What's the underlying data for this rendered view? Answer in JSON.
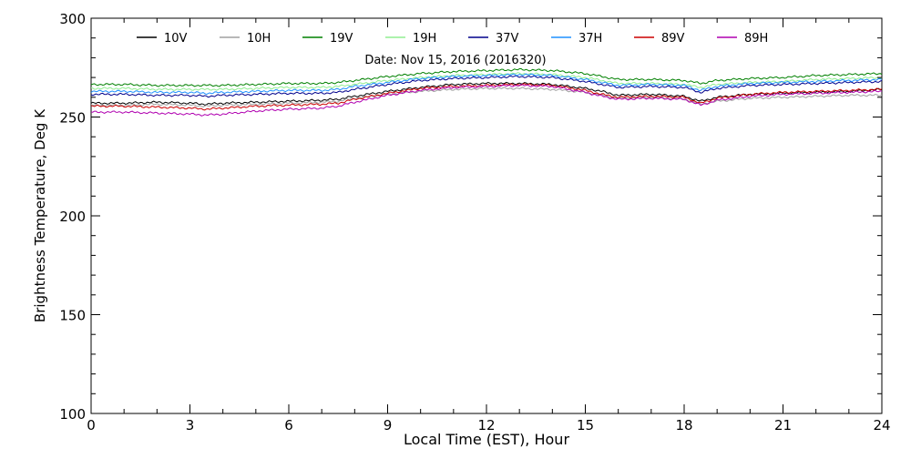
{
  "chart_data": {
    "type": "line",
    "annotation": "Date: Nov 15, 2016 (2016320)",
    "xlabel": "Local Time (EST), Hour",
    "ylabel": "Brightness Temperature, Deg K",
    "xlim": [
      0,
      24
    ],
    "ylim": [
      100,
      300
    ],
    "x_ticks": [
      0,
      3,
      6,
      9,
      12,
      15,
      18,
      21,
      24
    ],
    "y_ticks": [
      100,
      150,
      200,
      250,
      300
    ],
    "grid": false,
    "legend_position": "top",
    "x": [
      0,
      1,
      2,
      3,
      3.5,
      4,
      5,
      6,
      7,
      7.5,
      8,
      9,
      10,
      11,
      12,
      13,
      14,
      15,
      15.5,
      16,
      17,
      18,
      18.5,
      19,
      20,
      21,
      22,
      23,
      24
    ],
    "series": [
      {
        "name": "10V",
        "color": "#000000",
        "values": [
          257,
          257,
          257.5,
          257,
          256.5,
          257,
          257.5,
          258,
          258.5,
          259,
          260.5,
          263,
          265,
          266.5,
          267,
          267,
          266.5,
          264.5,
          263,
          261,
          261.5,
          260.5,
          258,
          260,
          261.5,
          262,
          262.5,
          263,
          264
        ]
      },
      {
        "name": "10H",
        "color": "#a0a0a0",
        "values": [
          256,
          256,
          256.5,
          256,
          255.5,
          256,
          256.5,
          257,
          257.5,
          258,
          259.5,
          261.5,
          263,
          264,
          264.5,
          264.5,
          264,
          262.5,
          261,
          259.5,
          260,
          259,
          256.5,
          258,
          259.5,
          260,
          260.5,
          261,
          261
        ]
      },
      {
        "name": "19V",
        "color": "#008000",
        "values": [
          266.5,
          266.5,
          266,
          266,
          266,
          266,
          266.5,
          267,
          267,
          267.5,
          268.5,
          270.5,
          272,
          273,
          273.5,
          274,
          273.5,
          272,
          270.5,
          269,
          269,
          268.5,
          267,
          268.5,
          269.5,
          270,
          271,
          271.5,
          272
        ]
      },
      {
        "name": "19H",
        "color": "#90ee90",
        "values": [
          264.5,
          264.5,
          264,
          264,
          264,
          264,
          264.5,
          265,
          265,
          265.5,
          266.5,
          268.5,
          270,
          271,
          271.5,
          272,
          271.5,
          270,
          268.5,
          267,
          267,
          266.5,
          265,
          266.5,
          267.5,
          268,
          269,
          269.5,
          270
        ]
      },
      {
        "name": "37V",
        "color": "#00008b",
        "values": [
          261.5,
          261.5,
          261,
          261,
          260.5,
          261,
          261.5,
          262,
          262,
          262.5,
          264,
          266.5,
          268.5,
          269.5,
          270,
          270.5,
          270,
          268,
          266.5,
          265,
          265.5,
          265,
          262.5,
          264.5,
          266,
          266.5,
          267,
          267.5,
          268
        ]
      },
      {
        "name": "37H",
        "color": "#1e90ff",
        "values": [
          263,
          263,
          262.5,
          262.5,
          262,
          262.5,
          263,
          263.5,
          263.5,
          264,
          265.5,
          267.5,
          269.5,
          270.5,
          271,
          271.5,
          271,
          269,
          267.5,
          266,
          266.5,
          266,
          263.5,
          265.5,
          267,
          267.5,
          268,
          268.5,
          269
        ]
      },
      {
        "name": "89V",
        "color": "#cc0000",
        "values": [
          255.5,
          255.5,
          255,
          254.5,
          254,
          254.5,
          255.5,
          256,
          256.5,
          257,
          259,
          262,
          264.5,
          265.5,
          266,
          266.5,
          266,
          263.5,
          261.5,
          260,
          260.5,
          260,
          257,
          259.5,
          261.5,
          262.5,
          263,
          263.5,
          264
        ]
      },
      {
        "name": "89H",
        "color": "#b000b0",
        "values": [
          252.5,
          252.5,
          252,
          251.5,
          251,
          251.5,
          253,
          254,
          254.5,
          255.5,
          257.5,
          261,
          263.5,
          265,
          265.5,
          266,
          265.5,
          262.5,
          260.5,
          259,
          259.5,
          259,
          256,
          258.5,
          260.5,
          261.5,
          262,
          262.5,
          263
        ]
      }
    ]
  }
}
